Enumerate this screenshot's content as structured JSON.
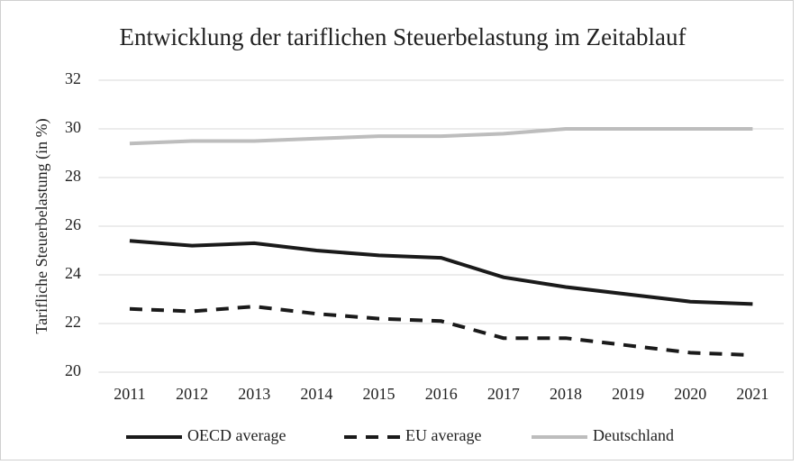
{
  "chart_data": {
    "type": "line",
    "title": "Entwicklung der tariflichen Steuerbelastung im Zeitablauf",
    "y_label": "Tarifliche Steuerbelastung (in %)",
    "categories": [
      "2011",
      "2012",
      "2013",
      "2014",
      "2015",
      "2016",
      "2017",
      "2018",
      "2019",
      "2020",
      "2021"
    ],
    "series": [
      {
        "name": "OECD average",
        "color": "#1a1a1a",
        "dash": "solid",
        "values": [
          25.4,
          25.2,
          25.3,
          25.0,
          24.8,
          24.7,
          23.9,
          23.5,
          23.2,
          22.9,
          22.8
        ]
      },
      {
        "name": "EU average",
        "color": "#1a1a1a",
        "dash": "dashed",
        "values": [
          22.6,
          22.5,
          22.7,
          22.4,
          22.2,
          22.1,
          21.4,
          21.4,
          21.1,
          20.8,
          20.7
        ]
      },
      {
        "name": "Deutschland",
        "color": "#bdbdbd",
        "dash": "solid",
        "values": [
          29.4,
          29.5,
          29.5,
          29.6,
          29.7,
          29.7,
          29.8,
          30,
          30,
          30,
          30
        ]
      }
    ],
    "ylim": [
      20,
      32
    ],
    "yticks": [
      20,
      22,
      24,
      26,
      28,
      30,
      32
    ],
    "grid": true,
    "legend": "bottom"
  }
}
